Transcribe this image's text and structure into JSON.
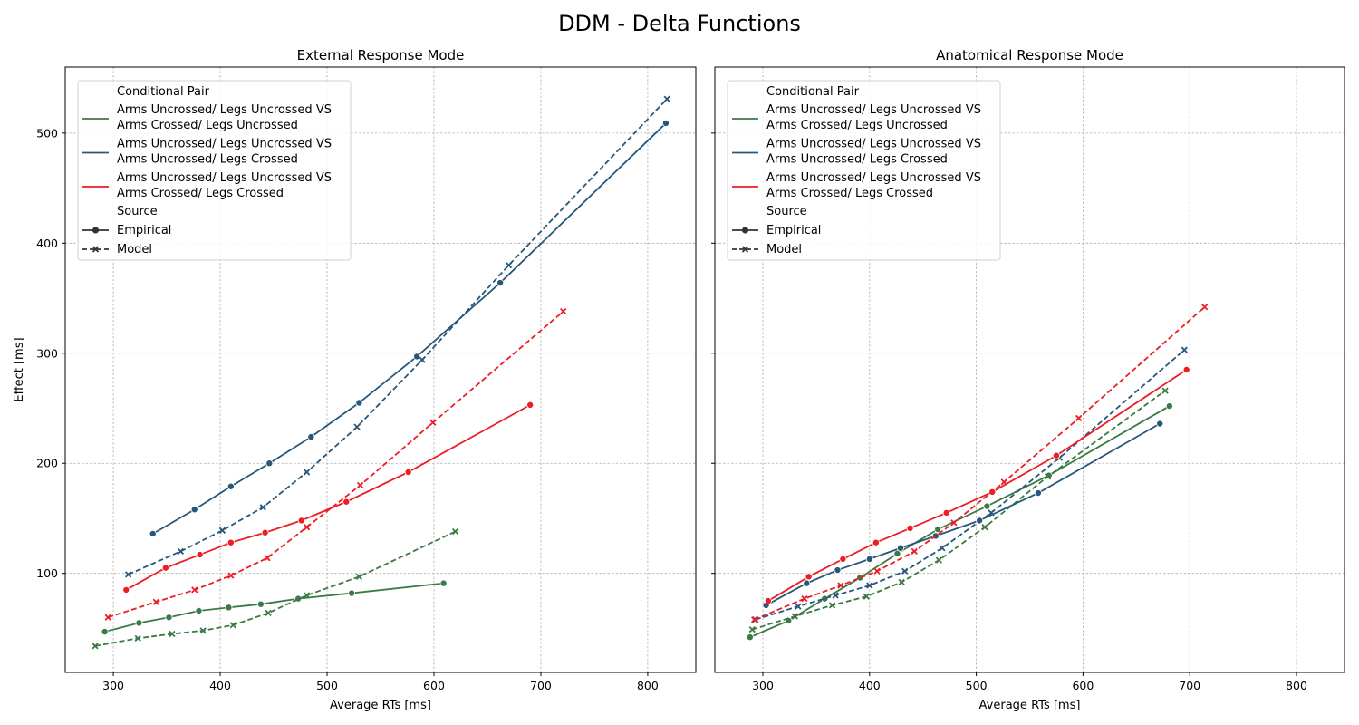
{
  "suptitle": "DDM - Delta Functions",
  "ylabel": "Effect [ms]",
  "legend": {
    "title_pair": "Conditional Pair",
    "title_source": "Source",
    "pairs": [
      {
        "line1": "Arms Uncrossed/ Legs Uncrossed VS",
        "line2": "Arms Crossed/ Legs Uncrossed",
        "color": "#3a7a45"
      },
      {
        "line1": "Arms Uncrossed/ Legs Uncrossed VS",
        "line2": "Arms Uncrossed/ Legs Crossed",
        "color": "#27577a"
      },
      {
        "line1": "Arms Uncrossed/ Legs Uncrossed VS",
        "line2": "Arms Crossed/ Legs Crossed",
        "color": "#ee1c25"
      }
    ],
    "sources": [
      "Empirical",
      "Model"
    ]
  },
  "chart_data": [
    {
      "type": "line",
      "title": "External Response Mode",
      "xlabel": "Average RTs [ms]",
      "ylabel": "Effect [ms]",
      "xlim": [
        255,
        845
      ],
      "ylim": [
        10,
        560
      ],
      "xticks": [
        300,
        400,
        500,
        600,
        700,
        800
      ],
      "yticks": [
        100,
        200,
        300,
        400,
        500
      ],
      "grid": true,
      "legend_position": "upper-left",
      "series": [
        {
          "name": "Arms Uncrossed/ Legs Uncrossed VS Arms Crossed/ Legs Uncrossed",
          "source": "Empirical",
          "color": "#3a7a45",
          "x": [
            292,
            324,
            352,
            380,
            408,
            438,
            473,
            523,
            609
          ],
          "y": [
            47,
            55,
            60,
            66,
            69,
            72,
            77,
            82,
            91
          ]
        },
        {
          "name": "Arms Uncrossed/ Legs Uncrossed VS Arms Crossed/ Legs Uncrossed",
          "source": "Model",
          "color": "#3a7a45",
          "x": [
            283,
            323,
            355,
            384,
            412,
            445,
            481,
            530,
            620
          ],
          "y": [
            34,
            41,
            45,
            48,
            53,
            64,
            80,
            97,
            138
          ]
        },
        {
          "name": "Arms Uncrossed/ Legs Uncrossed VS Arms Uncrossed/ Legs Crossed",
          "source": "Empirical",
          "color": "#27577a",
          "x": [
            337,
            376,
            410,
            446,
            485,
            530,
            584,
            662,
            817
          ],
          "y": [
            136,
            158,
            179,
            200,
            224,
            255,
            297,
            364,
            509
          ]
        },
        {
          "name": "Arms Uncrossed/ Legs Uncrossed VS Arms Uncrossed/ Legs Crossed",
          "source": "Model",
          "color": "#27577a",
          "x": [
            314,
            363,
            402,
            440,
            481,
            528,
            589,
            670,
            818
          ],
          "y": [
            99,
            120,
            139,
            160,
            192,
            233,
            294,
            380,
            531
          ]
        },
        {
          "name": "Arms Uncrossed/ Legs Uncrossed VS Arms Crossed/ Legs Crossed",
          "source": "Empirical",
          "color": "#ee1c25",
          "x": [
            312,
            349,
            381,
            410,
            442,
            476,
            518,
            576,
            690
          ],
          "y": [
            85,
            105,
            117,
            128,
            137,
            148,
            165,
            192,
            253
          ]
        },
        {
          "name": "Arms Uncrossed/ Legs Uncrossed VS Arms Crossed/ Legs Crossed",
          "source": "Model",
          "color": "#ee1c25",
          "x": [
            295,
            340,
            376,
            410,
            444,
            481,
            531,
            599,
            721
          ],
          "y": [
            60,
            74,
            85,
            98,
            114,
            142,
            180,
            237,
            338
          ]
        }
      ]
    },
    {
      "type": "line",
      "title": "Anatomical Response Mode",
      "xlabel": "Average RTs [ms]",
      "ylabel": "",
      "xlim": [
        255,
        845
      ],
      "ylim": [
        10,
        560
      ],
      "xticks": [
        300,
        400,
        500,
        600,
        700,
        800
      ],
      "yticks": [
        100,
        200,
        300,
        400,
        500
      ],
      "grid": true,
      "legend_position": "upper-left",
      "series": [
        {
          "name": "Arms Uncrossed/ Legs Uncrossed VS Arms Crossed/ Legs Uncrossed",
          "source": "Empirical",
          "color": "#3a7a45",
          "x": [
            288,
            324,
            358,
            391,
            426,
            464,
            510,
            568,
            681
          ],
          "y": [
            42,
            57,
            77,
            96,
            118,
            140,
            161,
            189,
            252
          ]
        },
        {
          "name": "Arms Uncrossed/ Legs Uncrossed VS Arms Crossed/ Legs Uncrossed",
          "source": "Model",
          "color": "#3a7a45",
          "x": [
            290,
            330,
            365,
            397,
            430,
            465,
            508,
            567,
            677
          ],
          "y": [
            49,
            61,
            71,
            79,
            92,
            112,
            142,
            188,
            266
          ]
        },
        {
          "name": "Arms Uncrossed/ Legs Uncrossed VS Arms Uncrossed/ Legs Crossed",
          "source": "Empirical",
          "color": "#27577a",
          "x": [
            303,
            341,
            370,
            400,
            429,
            462,
            503,
            558,
            672
          ],
          "y": [
            71,
            91,
            103,
            113,
            123,
            134,
            148,
            173,
            236
          ]
        },
        {
          "name": "Arms Uncrossed/ Legs Uncrossed VS Arms Uncrossed/ Legs Crossed",
          "source": "Model",
          "color": "#27577a",
          "x": [
            293,
            333,
            368,
            400,
            433,
            468,
            514,
            578,
            695
          ],
          "y": [
            58,
            70,
            80,
            89,
            102,
            123,
            155,
            205,
            303
          ]
        },
        {
          "name": "Arms Uncrossed/ Legs Uncrossed VS Arms Crossed/ Legs Crossed",
          "source": "Empirical",
          "color": "#ee1c25",
          "x": [
            305,
            343,
            375,
            406,
            438,
            472,
            515,
            575,
            697
          ],
          "y": [
            75,
            97,
            113,
            128,
            141,
            155,
            174,
            207,
            285
          ]
        },
        {
          "name": "Arms Uncrossed/ Legs Uncrossed VS Arms Crossed/ Legs Crossed",
          "source": "Model",
          "color": "#ee1c25",
          "x": [
            292,
            339,
            373,
            407,
            442,
            479,
            526,
            596,
            714
          ],
          "y": [
            58,
            77,
            89,
            102,
            120,
            146,
            183,
            241,
            342
          ]
        }
      ]
    }
  ]
}
